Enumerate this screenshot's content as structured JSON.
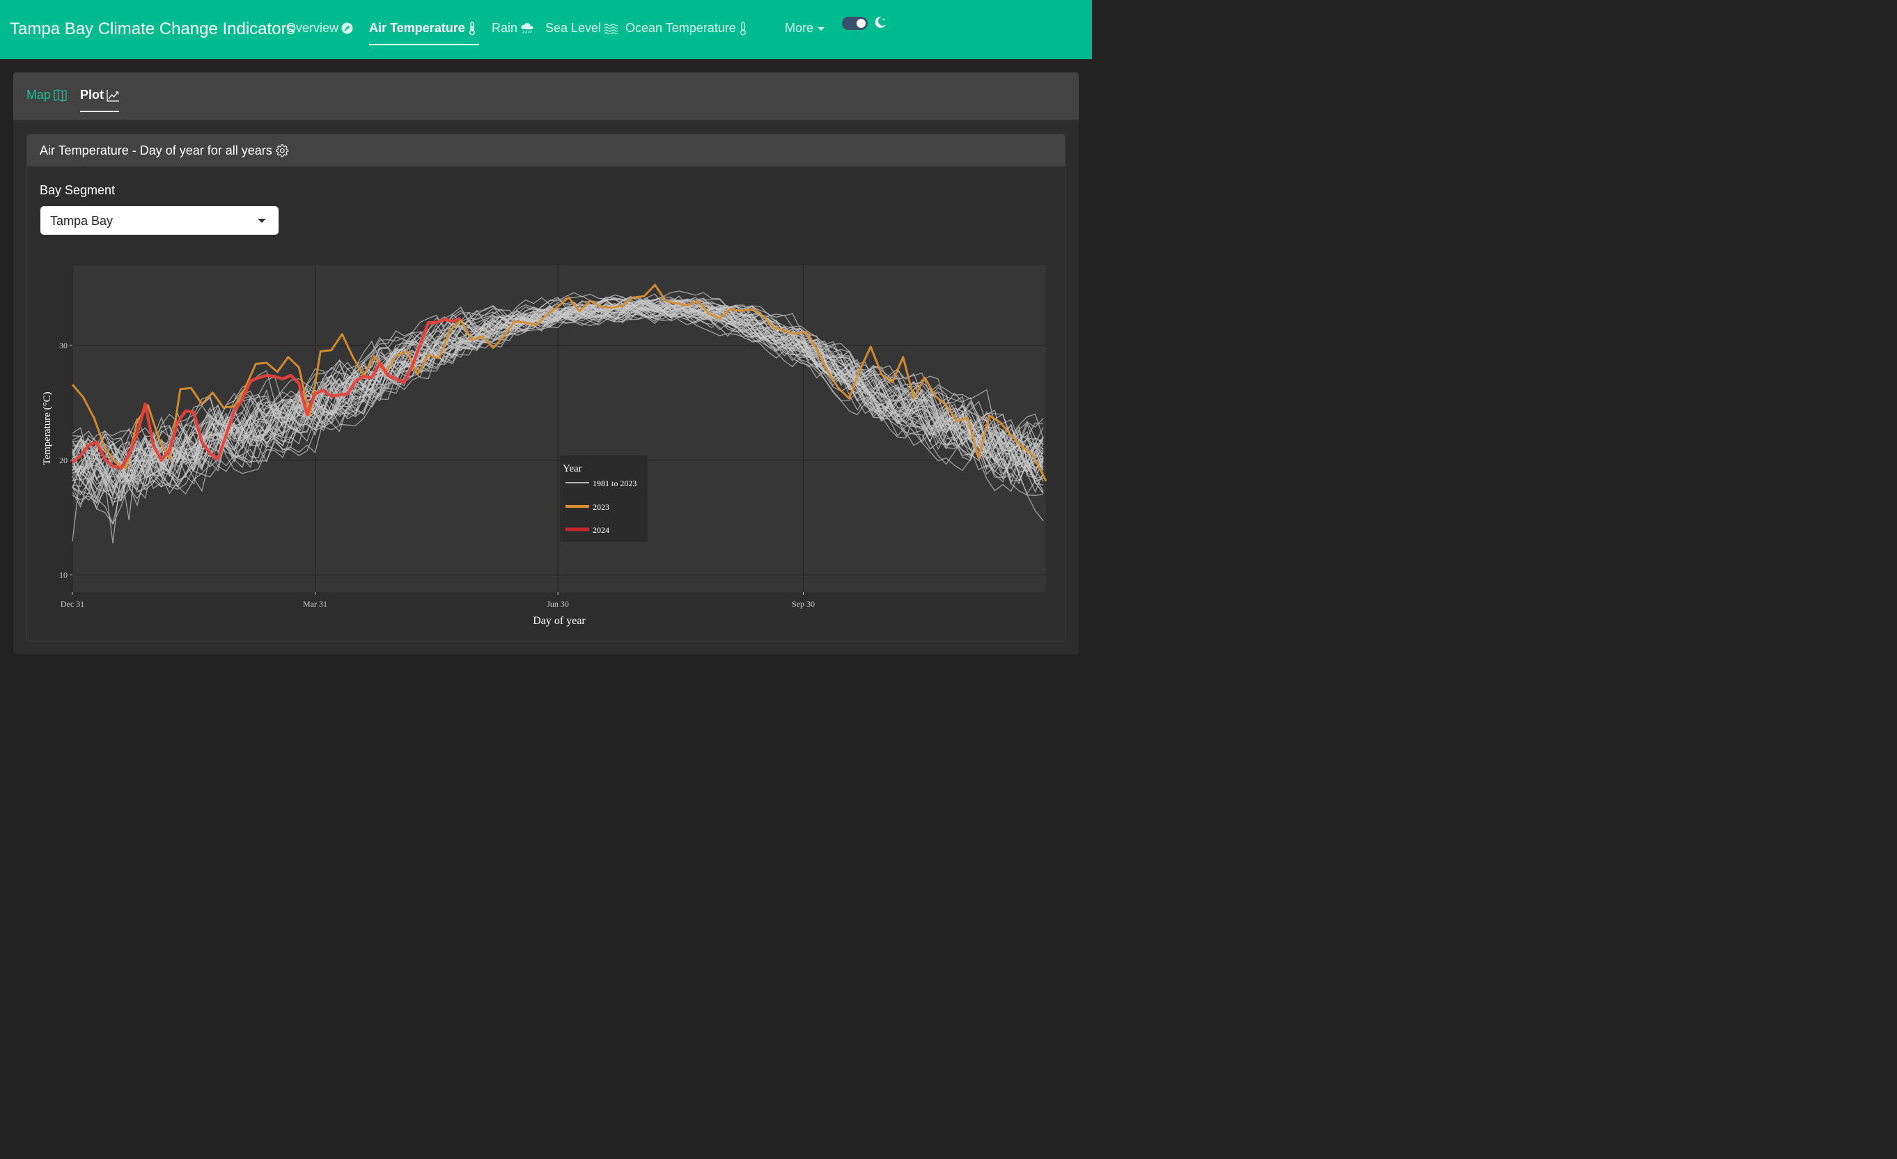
{
  "navbar": {
    "title": "Tampa Bay Climate Change Indicators",
    "items": [
      {
        "label": "Overview",
        "icon": "leaf-icon"
      },
      {
        "label": "Air Temperature",
        "icon": "thermometer-icon"
      },
      {
        "label": "Rain",
        "icon": "cloud-rain-icon"
      },
      {
        "label": "Sea Level",
        "icon": "water-icon"
      },
      {
        "label": "Ocean Temperature",
        "icon": "thermometer-icon"
      },
      {
        "label": "More",
        "icon": "caret-down-icon"
      }
    ],
    "active": "Air Temperature",
    "toggle_state": "on"
  },
  "tabs": [
    {
      "label": "Map",
      "icon": "map-icon"
    },
    {
      "label": "Plot",
      "icon": "chart-line-icon"
    }
  ],
  "active_tab": "Plot",
  "card": {
    "title": "Air Temperature - Day of year for all years",
    "title_icon": "gear-icon",
    "field_label": "Bay Segment",
    "select_value": "Tampa Bay"
  },
  "colors": {
    "navbar": "#00bb8f",
    "historic": "#c8c8c8",
    "year_2023": "#d98f2e",
    "year_2024": "#e8403a",
    "panel": "#363636"
  },
  "chart_data": {
    "type": "line",
    "xlabel": "Day of year",
    "ylabel": "Temperature (°C)",
    "xticks": [
      "Dec 31",
      "Mar 31",
      "Jun 30",
      "Sep 30"
    ],
    "xtick_values": [
      0,
      90,
      180,
      271
    ],
    "xlim": [
      0,
      361
    ],
    "yticks": [
      10,
      20,
      30
    ],
    "ylim": [
      8.5,
      37
    ],
    "grid": true,
    "legend": {
      "title": "Year",
      "placement": "center",
      "entries": [
        "1981 to 2023",
        "2023",
        "2024"
      ]
    },
    "historic_range": {
      "name": "1981 to 2023",
      "years": 43,
      "mean": [
        [
          0,
          19.5
        ],
        [
          15,
          18.5
        ],
        [
          30,
          19.8
        ],
        [
          45,
          20.8
        ],
        [
          60,
          22.5
        ],
        [
          75,
          23.3
        ],
        [
          90,
          24.6
        ],
        [
          105,
          26.2
        ],
        [
          120,
          28.4
        ],
        [
          135,
          30.1
        ],
        [
          150,
          31.3
        ],
        [
          165,
          32.2
        ],
        [
          180,
          32.8
        ],
        [
          195,
          33.1
        ],
        [
          210,
          33.3
        ],
        [
          225,
          33.2
        ],
        [
          240,
          32.6
        ],
        [
          255,
          31.6
        ],
        [
          270,
          30.2
        ],
        [
          285,
          27.8
        ],
        [
          300,
          25.6
        ],
        [
          315,
          24.1
        ],
        [
          330,
          22.4
        ],
        [
          345,
          20.8
        ],
        [
          361,
          19.8
        ]
      ],
      "spread": [
        [
          0,
          4.5
        ],
        [
          30,
          4.6
        ],
        [
          60,
          4.0
        ],
        [
          90,
          3.8
        ],
        [
          120,
          3.0
        ],
        [
          150,
          2.0
        ],
        [
          180,
          1.4
        ],
        [
          210,
          1.3
        ],
        [
          240,
          1.5
        ],
        [
          270,
          2.0
        ],
        [
          300,
          3.0
        ],
        [
          330,
          3.8
        ],
        [
          361,
          4.6
        ]
      ]
    },
    "series": [
      {
        "name": "2023",
        "x": [
          0,
          4,
          8,
          12,
          16,
          20,
          24,
          28,
          32,
          36,
          40,
          44,
          48,
          52,
          56,
          60,
          64,
          68,
          72,
          76,
          80,
          84,
          88,
          92,
          96,
          100,
          104,
          108,
          112,
          116,
          120,
          124,
          128,
          132,
          136,
          140,
          144,
          148,
          152,
          156,
          160,
          164,
          168,
          172,
          176,
          180,
          184,
          188,
          192,
          196,
          200,
          204,
          208,
          212,
          216,
          220,
          224,
          228,
          232,
          236,
          240,
          244,
          248,
          252,
          256,
          260,
          264,
          268,
          272,
          276,
          280,
          284,
          288,
          292,
          296,
          300,
          304,
          308,
          312,
          316,
          320,
          324,
          328,
          332,
          336,
          340,
          344,
          348,
          352,
          356,
          361
        ],
        "values": [
          26.6,
          25.5,
          23.7,
          21.1,
          19.8,
          19.3,
          23.4,
          24.8,
          21.9,
          20.1,
          26.2,
          26.3,
          24.9,
          25.9,
          24.6,
          24.7,
          26.3,
          28.4,
          28.5,
          27.7,
          29.0,
          28.1,
          23.9,
          29.5,
          29.6,
          31.0,
          29.0,
          27.4,
          29.1,
          27.6,
          29.1,
          29.5,
          27.5,
          29.2,
          28.9,
          31.3,
          32.2,
          30.5,
          30.8,
          29.8,
          30.8,
          32.1,
          32.0,
          31.8,
          32.7,
          33.4,
          34.2,
          33.0,
          33.9,
          33.4,
          33.3,
          33.5,
          34.2,
          34.3,
          35.3,
          33.9,
          33.7,
          33.5,
          33.9,
          32.8,
          32.4,
          33.2,
          33.0,
          33.2,
          32.6,
          31.6,
          31.3,
          31.0,
          31.2,
          29.7,
          27.8,
          26.3,
          25.4,
          27.9,
          29.9,
          27.5,
          26.8,
          29.0,
          25.4,
          27.2,
          25.6,
          24.8,
          23.4,
          23.7,
          20.2,
          23.9,
          23.3,
          22.2,
          21.2,
          20.5,
          18.2
        ]
      },
      {
        "name": "2024",
        "x": [
          0,
          3,
          6,
          9,
          12,
          15,
          18,
          21,
          24,
          27,
          30,
          33,
          36,
          39,
          42,
          45,
          48,
          51,
          54,
          57,
          60,
          63,
          66,
          69,
          72,
          75,
          78,
          81,
          84,
          87,
          90,
          93,
          96,
          99,
          102,
          105,
          108,
          111,
          114,
          117,
          120,
          123,
          126,
          129,
          132,
          135,
          138,
          141,
          144
        ],
        "values": [
          19.8,
          20.4,
          21.3,
          21.6,
          20.1,
          19.5,
          19.3,
          20.5,
          22.3,
          24.9,
          21.3,
          20.0,
          20.9,
          23.3,
          24.3,
          24.2,
          21.6,
          20.6,
          20.1,
          22.2,
          24.3,
          25.3,
          26.9,
          27.2,
          27.4,
          27.3,
          27.1,
          27.4,
          26.7,
          24.0,
          25.8,
          26.1,
          25.6,
          25.7,
          25.8,
          26.9,
          27.3,
          27.2,
          28.5,
          27.4,
          27.1,
          26.8,
          28.2,
          30.1,
          32.0,
          32.0,
          32.3,
          32.1,
          32.4
        ]
      }
    ]
  }
}
